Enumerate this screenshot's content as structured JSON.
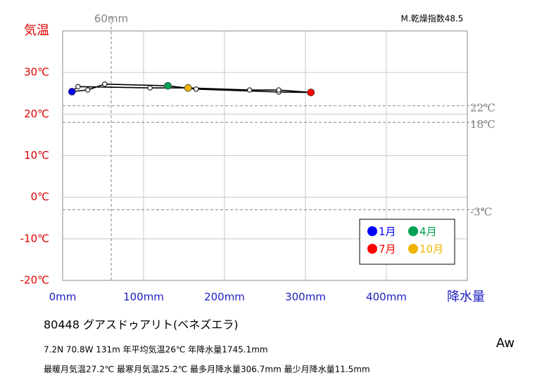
{
  "chart_data": {
    "type": "scatter",
    "indicator": "M.乾燥指数48.5",
    "xlabel": "降水量",
    "ylabel": "気温",
    "xlim": [
      0,
      500
    ],
    "ylim": [
      -20,
      40
    ],
    "xticks": [
      {
        "value": 0,
        "label": "0mm"
      },
      {
        "value": 100,
        "label": "100mm"
      },
      {
        "value": 200,
        "label": "200mm"
      },
      {
        "value": 300,
        "label": "300mm"
      },
      {
        "value": 400,
        "label": "400mm"
      }
    ],
    "yticks": [
      {
        "value": -20,
        "label": "-20℃"
      },
      {
        "value": -10,
        "label": "-10℃"
      },
      {
        "value": 0,
        "label": "0℃"
      },
      {
        "value": 10,
        "label": "10℃"
      },
      {
        "value": 20,
        "label": "20℃"
      },
      {
        "value": 30,
        "label": "30℃"
      }
    ],
    "grid": true,
    "x_reference_lines": [
      {
        "value": 60,
        "label": "60mm"
      }
    ],
    "y_reference_lines": [
      {
        "value": 22,
        "label": "22℃"
      },
      {
        "value": 18,
        "label": "18℃"
      },
      {
        "value": -3,
        "label": "-3℃"
      }
    ],
    "series": [
      {
        "color": "#000000",
        "x": [
          11.5,
          31,
          52,
          130,
          165,
          267,
          306.7,
          267,
          231,
          155,
          108,
          19
        ],
        "values": [
          25.4,
          25.8,
          27.2,
          26.8,
          26.0,
          25.3,
          25.2,
          25.8,
          25.8,
          26.3,
          26.3,
          26.6
        ]
      }
    ],
    "highlights": [
      {
        "name": "1月",
        "color": "#0000ff"
      },
      {
        "name": "4月",
        "color": "#00a050"
      },
      {
        "name": "7月",
        "color": "#ff0000"
      },
      {
        "name": "10月",
        "color": "#f0b400"
      }
    ],
    "legend": "lower right",
    "station": "80448  グアスドゥアリト(ベネズエラ)",
    "info": [
      "7.2N  70.8W 131m  年平均気温26℃ 年降水量1745.1mm",
      "最暖月気温27.2℃ 最寒月気温25.2℃ 最多月降水量306.7mm 最少月降水量11.5mm"
    ],
    "climate": "Aw"
  }
}
